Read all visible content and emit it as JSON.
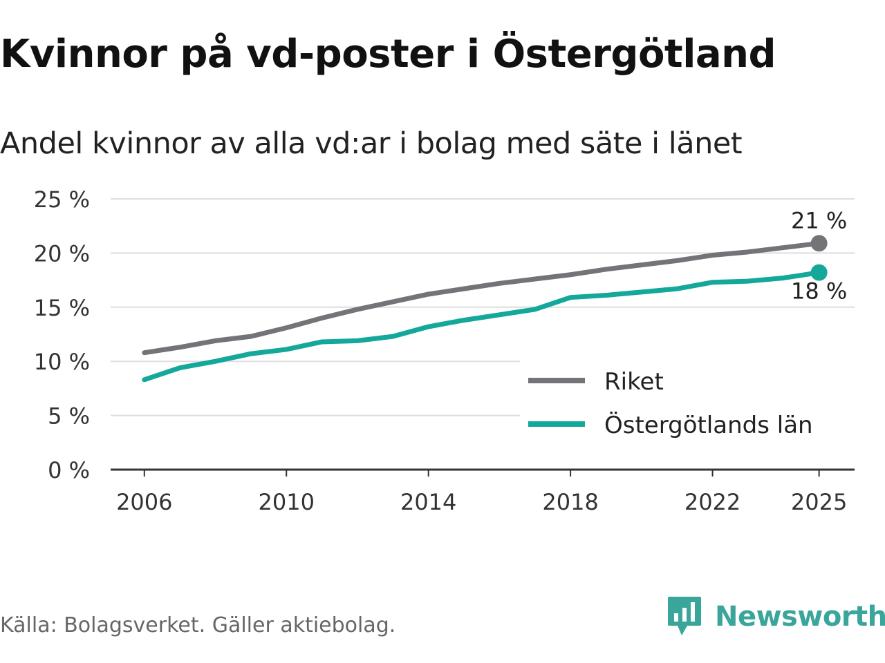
{
  "header": {
    "title": "Kvinnor på vd-poster i Östergötland",
    "subtitle": "Andel kvinnor av alla vd:ar i bolag med säte i länet"
  },
  "footer": {
    "source": "Källa: Bolagsverket. Gäller aktiebolag.",
    "brand": "Newsworthy",
    "brand_icon": "newsworthy-logo-icon"
  },
  "colors": {
    "riket": "#747378",
    "lan": "#14a89b",
    "grid": "#dddddd",
    "axis": "#333333",
    "brand": "#3aa59a"
  },
  "chart_data": {
    "type": "line",
    "x": [
      2006,
      2007,
      2008,
      2009,
      2010,
      2011,
      2012,
      2013,
      2014,
      2015,
      2016,
      2017,
      2018,
      2019,
      2020,
      2021,
      2022,
      2023,
      2024,
      2025
    ],
    "series": [
      {
        "name": "Riket",
        "values": [
          10.8,
          11.3,
          11.9,
          12.3,
          13.1,
          14.0,
          14.8,
          15.5,
          16.2,
          16.7,
          17.2,
          17.6,
          18.0,
          18.5,
          18.9,
          19.3,
          19.8,
          20.1,
          20.5,
          20.9
        ],
        "end_label": "21 %"
      },
      {
        "name": "Östergötlands län",
        "values": [
          8.3,
          9.4,
          10.0,
          10.7,
          11.1,
          11.8,
          11.9,
          12.3,
          13.2,
          13.8,
          14.3,
          14.8,
          15.9,
          16.1,
          16.4,
          16.7,
          17.3,
          17.4,
          17.7,
          18.2
        ],
        "end_label": "18 %"
      }
    ],
    "y_ticks": [
      0,
      5,
      10,
      15,
      20,
      25
    ],
    "y_tick_labels": [
      "0 %",
      "5 %",
      "10 %",
      "15 %",
      "20 %",
      "25 %"
    ],
    "x_ticks": [
      2006,
      2010,
      2014,
      2018,
      2022,
      2025
    ],
    "x_tick_labels": [
      "2006",
      "2010",
      "2014",
      "2018",
      "2022",
      "2025"
    ],
    "ylim": [
      0,
      25
    ],
    "xlim": [
      2005.05,
      2026.0
    ],
    "grid": true,
    "legend_position": "bottom-right",
    "title": "Kvinnor på vd-poster i Östergötland",
    "subtitle": "Andel kvinnor av alla vd:ar i bolag med säte i länet",
    "xlabel": "",
    "ylabel": ""
  }
}
